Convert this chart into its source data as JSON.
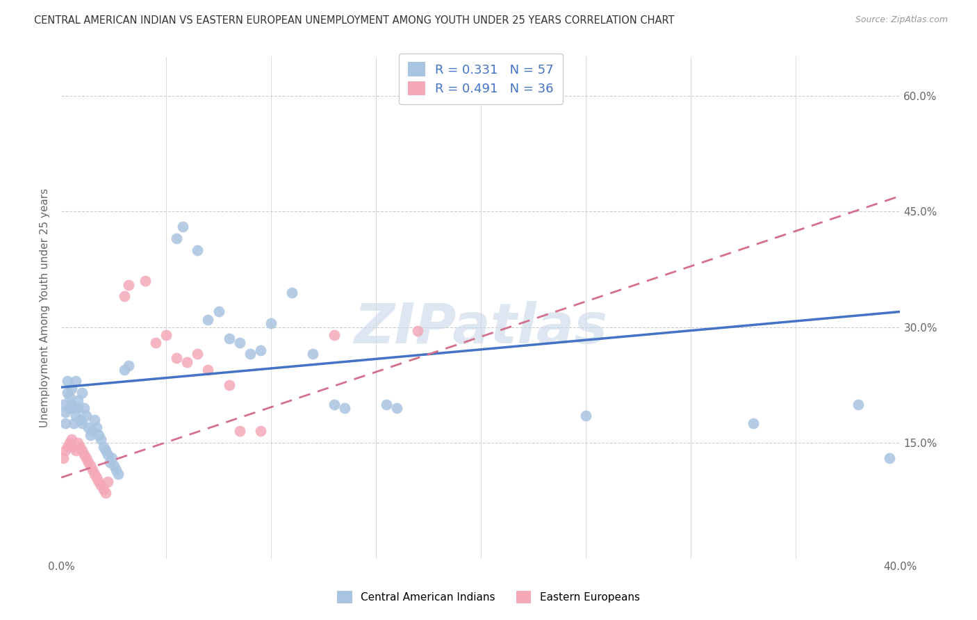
{
  "title": "CENTRAL AMERICAN INDIAN VS EASTERN EUROPEAN UNEMPLOYMENT AMONG YOUTH UNDER 25 YEARS CORRELATION CHART",
  "source": "Source: ZipAtlas.com",
  "ylabel": "Unemployment Among Youth under 25 years",
  "xlim": [
    0.0,
    0.4
  ],
  "ylim": [
    0.0,
    0.65
  ],
  "ytick_positions": [
    0.0,
    0.15,
    0.3,
    0.45,
    0.6
  ],
  "ytick_labels": [
    "",
    "15.0%",
    "30.0%",
    "45.0%",
    "60.0%"
  ],
  "blue_R": 0.331,
  "blue_N": 57,
  "pink_R": 0.491,
  "pink_N": 36,
  "blue_color": "#a8c4e0",
  "pink_color": "#f4a8b8",
  "blue_line_color": "#4472c4",
  "pink_line_color": "#d4708a",
  "blue_line": [
    0.0,
    0.222,
    0.4,
    0.32
  ],
  "pink_line": [
    0.0,
    0.105,
    0.4,
    0.47
  ],
  "blue_scatter": [
    [
      0.001,
      0.2
    ],
    [
      0.002,
      0.19
    ],
    [
      0.002,
      0.175
    ],
    [
      0.003,
      0.23
    ],
    [
      0.003,
      0.215
    ],
    [
      0.004,
      0.21
    ],
    [
      0.004,
      0.195
    ],
    [
      0.005,
      0.22
    ],
    [
      0.005,
      0.2
    ],
    [
      0.006,
      0.195
    ],
    [
      0.006,
      0.175
    ],
    [
      0.007,
      0.23
    ],
    [
      0.007,
      0.185
    ],
    [
      0.008,
      0.205
    ],
    [
      0.008,
      0.195
    ],
    [
      0.009,
      0.18
    ],
    [
      0.01,
      0.215
    ],
    [
      0.01,
      0.175
    ],
    [
      0.011,
      0.195
    ],
    [
      0.012,
      0.185
    ],
    [
      0.013,
      0.17
    ],
    [
      0.014,
      0.16
    ],
    [
      0.015,
      0.165
    ],
    [
      0.016,
      0.18
    ],
    [
      0.017,
      0.17
    ],
    [
      0.018,
      0.16
    ],
    [
      0.019,
      0.155
    ],
    [
      0.02,
      0.145
    ],
    [
      0.021,
      0.14
    ],
    [
      0.022,
      0.135
    ],
    [
      0.023,
      0.125
    ],
    [
      0.024,
      0.13
    ],
    [
      0.025,
      0.12
    ],
    [
      0.026,
      0.115
    ],
    [
      0.027,
      0.11
    ],
    [
      0.03,
      0.245
    ],
    [
      0.032,
      0.25
    ],
    [
      0.055,
      0.415
    ],
    [
      0.058,
      0.43
    ],
    [
      0.065,
      0.4
    ],
    [
      0.07,
      0.31
    ],
    [
      0.075,
      0.32
    ],
    [
      0.08,
      0.285
    ],
    [
      0.085,
      0.28
    ],
    [
      0.09,
      0.265
    ],
    [
      0.095,
      0.27
    ],
    [
      0.1,
      0.305
    ],
    [
      0.11,
      0.345
    ],
    [
      0.12,
      0.265
    ],
    [
      0.13,
      0.2
    ],
    [
      0.135,
      0.195
    ],
    [
      0.155,
      0.2
    ],
    [
      0.16,
      0.195
    ],
    [
      0.25,
      0.185
    ],
    [
      0.33,
      0.175
    ],
    [
      0.38,
      0.2
    ],
    [
      0.395,
      0.13
    ]
  ],
  "pink_scatter": [
    [
      0.001,
      0.13
    ],
    [
      0.002,
      0.14
    ],
    [
      0.003,
      0.145
    ],
    [
      0.004,
      0.15
    ],
    [
      0.005,
      0.155
    ],
    [
      0.006,
      0.145
    ],
    [
      0.007,
      0.14
    ],
    [
      0.008,
      0.15
    ],
    [
      0.009,
      0.145
    ],
    [
      0.01,
      0.14
    ],
    [
      0.011,
      0.135
    ],
    [
      0.012,
      0.13
    ],
    [
      0.013,
      0.125
    ],
    [
      0.014,
      0.12
    ],
    [
      0.015,
      0.115
    ],
    [
      0.016,
      0.11
    ],
    [
      0.017,
      0.105
    ],
    [
      0.018,
      0.1
    ],
    [
      0.019,
      0.095
    ],
    [
      0.02,
      0.09
    ],
    [
      0.021,
      0.085
    ],
    [
      0.022,
      0.1
    ],
    [
      0.03,
      0.34
    ],
    [
      0.032,
      0.355
    ],
    [
      0.04,
      0.36
    ],
    [
      0.045,
      0.28
    ],
    [
      0.05,
      0.29
    ],
    [
      0.055,
      0.26
    ],
    [
      0.06,
      0.255
    ],
    [
      0.065,
      0.265
    ],
    [
      0.07,
      0.245
    ],
    [
      0.08,
      0.225
    ],
    [
      0.085,
      0.165
    ],
    [
      0.095,
      0.165
    ],
    [
      0.13,
      0.29
    ],
    [
      0.17,
      0.295
    ]
  ],
  "watermark_text": "ZIPatlas",
  "watermark_color": "#c8d8e8",
  "background_color": "#ffffff",
  "grid_color": "#cccccc"
}
